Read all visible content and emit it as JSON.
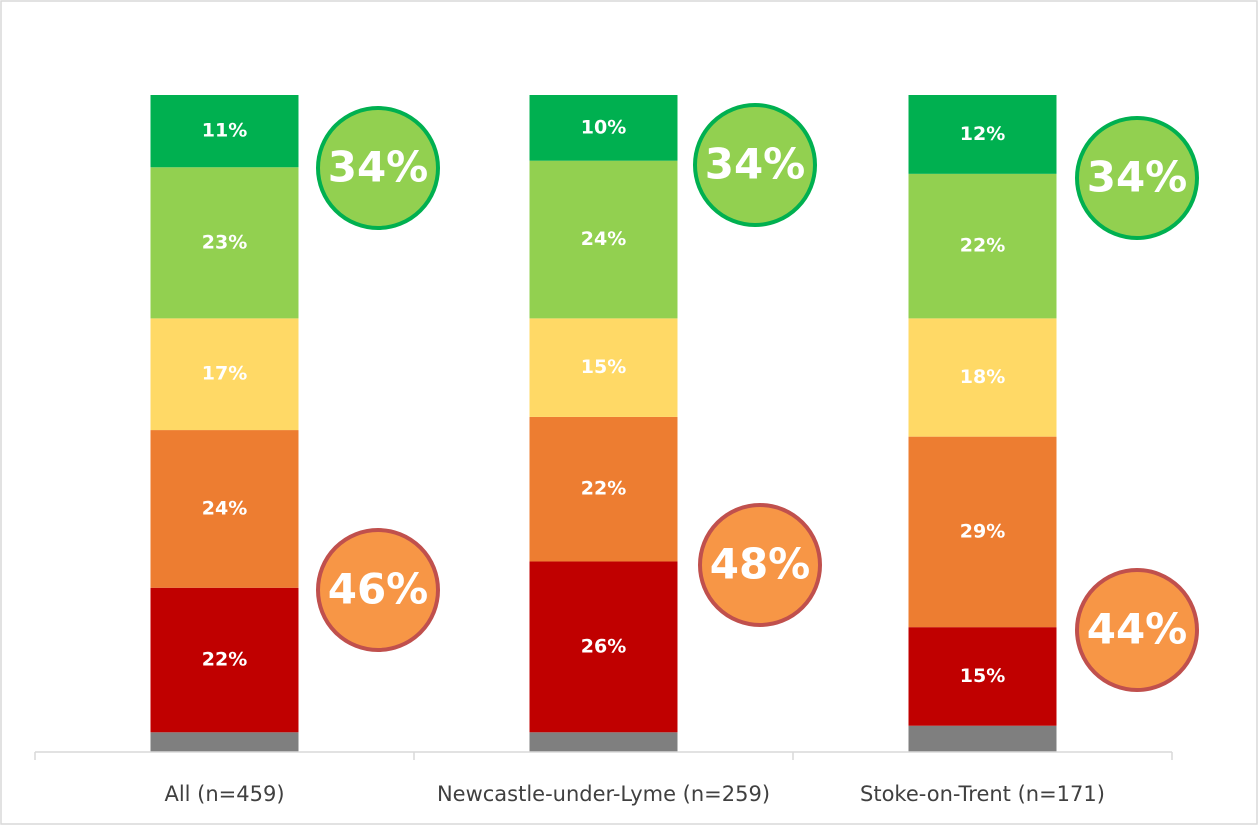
{
  "chart_data": {
    "type": "stacked_bar",
    "categories": [
      "All (n=459)",
      "Newcastle-under-Lyme (n=259)",
      "Stoke-on-Trent (n=171)"
    ],
    "ylim": [
      0,
      100
    ],
    "series": [
      {
        "color": "#7f7f7f",
        "values": [
          3,
          3,
          4
        ]
      },
      {
        "color": "#c00000",
        "values": [
          22,
          26,
          15
        ],
        "value_labels": [
          "22%",
          "26%",
          "15%"
        ]
      },
      {
        "color": "#ed7d31",
        "values": [
          24,
          22,
          29
        ],
        "value_labels": [
          "24%",
          "22%",
          "29%"
        ]
      },
      {
        "color": "#ffd966",
        "values": [
          17,
          15,
          18
        ],
        "value_labels": [
          "17%",
          "15%",
          "18%"
        ]
      },
      {
        "color": "#92d050",
        "values": [
          23,
          24,
          22
        ],
        "value_labels": [
          "23%",
          "24%",
          "22%"
        ]
      },
      {
        "color": "#00b050",
        "values": [
          11,
          10,
          12
        ],
        "value_labels": [
          "11%",
          "10%",
          "12%"
        ]
      }
    ],
    "top_totals": [
      "34%",
      "34%",
      "34%"
    ],
    "bottom_totals": [
      "46%",
      "48%",
      "44%"
    ]
  }
}
